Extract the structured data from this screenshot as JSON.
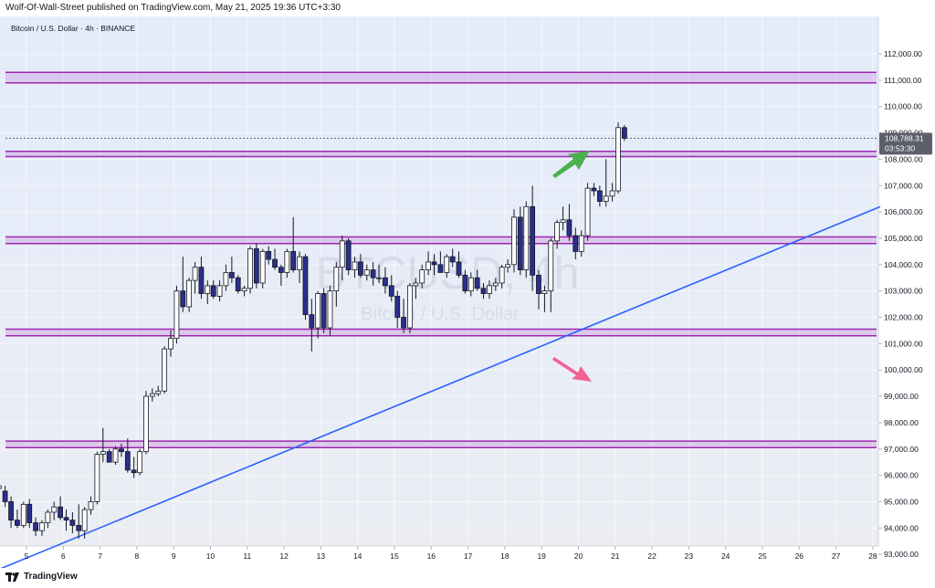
{
  "header": {
    "author": "Wolf-Of-Wall-Street",
    "published_text": " published on TradingView.com, ",
    "date_text": "May 21, 2025 19:36 UTC+3:30"
  },
  "symbol_label": "Bitcoin / U.S. Dollar · 4h · BINANCE",
  "watermark": {
    "ticker": "BTCUSD, 4h",
    "name": "Bitcoin / U.S. Dollar"
  },
  "price_tag": {
    "price": "108,788.31",
    "countdown": "03:53:30"
  },
  "footer": {
    "brand": "TradingView"
  },
  "colors": {
    "bull_body": "#ffffff",
    "bear_body": "#2a2e8c",
    "candle_outline": "#131722",
    "zone": "#9c27b0",
    "trendline": "#2962ff",
    "up_arrow": "#4caf50",
    "down_arrow": "#f06292",
    "price_tag_bg": "#5d606b"
  },
  "chart_data": {
    "type": "candlestick",
    "ylim": [
      92500,
      112500
    ],
    "x_date_range": [
      "May 4",
      "May 28"
    ],
    "yticks": [
      "93,000.00",
      "94,000.00",
      "95,000.00",
      "96,000.00",
      "97,000.00",
      "98,000.00",
      "99,000.00",
      "100,000.00",
      "101,000.00",
      "102,000.00",
      "103,000.00",
      "104,000.00",
      "105,000.00",
      "106,000.00",
      "107,000.00",
      "108,000.00",
      "109,000.00",
      "110,000.00",
      "111,000.00",
      "112,000.00"
    ],
    "xticks": [
      {
        "label": "5",
        "day": 5
      },
      {
        "label": "6",
        "day": 6
      },
      {
        "label": "7",
        "day": 7
      },
      {
        "label": "8",
        "day": 8
      },
      {
        "label": "9",
        "day": 9
      },
      {
        "label": "10",
        "day": 10
      },
      {
        "label": "11",
        "day": 11
      },
      {
        "label": "12",
        "day": 12
      },
      {
        "label": "13",
        "day": 13
      },
      {
        "label": "14",
        "day": 14
      },
      {
        "label": "15",
        "day": 15
      },
      {
        "label": "16",
        "day": 16
      },
      {
        "label": "17",
        "day": 17
      },
      {
        "label": "18",
        "day": 18
      },
      {
        "label": "19",
        "day": 19
      },
      {
        "label": "20",
        "day": 20
      },
      {
        "label": "21",
        "day": 21
      },
      {
        "label": "22",
        "day": 22
      },
      {
        "label": "23",
        "day": 23
      },
      {
        "label": "24",
        "day": 24
      },
      {
        "label": "25",
        "day": 25
      },
      {
        "label": "26",
        "day": 26
      },
      {
        "label": "27",
        "day": 27
      },
      {
        "label": "28",
        "day": 28
      }
    ],
    "zones": [
      {
        "top": 111300,
        "bottom": 110900
      },
      {
        "top": 108300,
        "bottom": 108100
      },
      {
        "top": 105050,
        "bottom": 104800
      },
      {
        "top": 101550,
        "bottom": 101300
      },
      {
        "top": 97300,
        "bottom": 97050
      }
    ],
    "trendline": {
      "start": {
        "day": 4.2,
        "price": 92400
      },
      "end": {
        "day": 28.2,
        "price": 106200
      }
    },
    "candles": [
      {
        "day": 4.25,
        "o": 95500,
        "h": 95700,
        "l": 95300,
        "c": 95600
      },
      {
        "day": 4.42,
        "o": 95400,
        "h": 95600,
        "l": 94800,
        "c": 95000
      },
      {
        "day": 4.58,
        "o": 95000,
        "h": 95200,
        "l": 94000,
        "c": 94300
      },
      {
        "day": 4.75,
        "o": 94300,
        "h": 94700,
        "l": 94000,
        "c": 94100
      },
      {
        "day": 4.92,
        "o": 94100,
        "h": 95000,
        "l": 94000,
        "c": 94900
      },
      {
        "day": 5.08,
        "o": 94900,
        "h": 95100,
        "l": 94000,
        "c": 94200
      },
      {
        "day": 5.25,
        "o": 94200,
        "h": 94400,
        "l": 93700,
        "c": 93900
      },
      {
        "day": 5.42,
        "o": 93900,
        "h": 94300,
        "l": 93700,
        "c": 94200
      },
      {
        "day": 5.58,
        "o": 94200,
        "h": 94700,
        "l": 94000,
        "c": 94600
      },
      {
        "day": 5.75,
        "o": 94600,
        "h": 95000,
        "l": 94300,
        "c": 94800
      },
      {
        "day": 5.92,
        "o": 94800,
        "h": 95200,
        "l": 94300,
        "c": 94400
      },
      {
        "day": 6.08,
        "o": 94400,
        "h": 94700,
        "l": 93900,
        "c": 94300
      },
      {
        "day": 6.25,
        "o": 94300,
        "h": 94600,
        "l": 93800,
        "c": 94100
      },
      {
        "day": 6.42,
        "o": 94100,
        "h": 94900,
        "l": 93600,
        "c": 93900
      },
      {
        "day": 6.58,
        "o": 93900,
        "h": 94800,
        "l": 93600,
        "c": 94700
      },
      {
        "day": 6.75,
        "o": 94700,
        "h": 95200,
        "l": 94500,
        "c": 95000
      },
      {
        "day": 6.92,
        "o": 95000,
        "h": 96900,
        "l": 94900,
        "c": 96800
      },
      {
        "day": 7.08,
        "o": 96800,
        "h": 97800,
        "l": 96500,
        "c": 96900
      },
      {
        "day": 7.25,
        "o": 96900,
        "h": 97000,
        "l": 96500,
        "c": 96500
      },
      {
        "day": 7.42,
        "o": 96500,
        "h": 97100,
        "l": 96400,
        "c": 97000
      },
      {
        "day": 7.58,
        "o": 97000,
        "h": 97200,
        "l": 96700,
        "c": 96900
      },
      {
        "day": 7.75,
        "o": 96900,
        "h": 97400,
        "l": 96100,
        "c": 96200
      },
      {
        "day": 7.92,
        "o": 96200,
        "h": 96700,
        "l": 95900,
        "c": 96100
      },
      {
        "day": 8.08,
        "o": 96100,
        "h": 97000,
        "l": 96000,
        "c": 96900
      },
      {
        "day": 8.25,
        "o": 96900,
        "h": 99200,
        "l": 96800,
        "c": 99000
      },
      {
        "day": 8.42,
        "o": 99000,
        "h": 99300,
        "l": 98800,
        "c": 99100
      },
      {
        "day": 8.58,
        "o": 99100,
        "h": 99400,
        "l": 99000,
        "c": 99200
      },
      {
        "day": 8.75,
        "o": 99200,
        "h": 100900,
        "l": 99100,
        "c": 100800
      },
      {
        "day": 8.92,
        "o": 100800,
        "h": 101500,
        "l": 100500,
        "c": 101200
      },
      {
        "day": 9.08,
        "o": 101200,
        "h": 103200,
        "l": 101000,
        "c": 103000
      },
      {
        "day": 9.25,
        "o": 103000,
        "h": 104300,
        "l": 102200,
        "c": 102400
      },
      {
        "day": 9.42,
        "o": 102400,
        "h": 103500,
        "l": 102200,
        "c": 103400
      },
      {
        "day": 9.58,
        "o": 103400,
        "h": 104100,
        "l": 102900,
        "c": 103900
      },
      {
        "day": 9.75,
        "o": 103900,
        "h": 104300,
        "l": 102700,
        "c": 102900
      },
      {
        "day": 9.92,
        "o": 102900,
        "h": 103400,
        "l": 102500,
        "c": 103200
      },
      {
        "day": 10.08,
        "o": 103200,
        "h": 103400,
        "l": 102700,
        "c": 102800
      },
      {
        "day": 10.25,
        "o": 102800,
        "h": 103400,
        "l": 102600,
        "c": 103200
      },
      {
        "day": 10.42,
        "o": 103200,
        "h": 104000,
        "l": 103000,
        "c": 103700
      },
      {
        "day": 10.58,
        "o": 103700,
        "h": 104300,
        "l": 103300,
        "c": 103500
      },
      {
        "day": 10.75,
        "o": 103500,
        "h": 103600,
        "l": 102900,
        "c": 103000
      },
      {
        "day": 10.92,
        "o": 103000,
        "h": 103200,
        "l": 102800,
        "c": 103100
      },
      {
        "day": 11.08,
        "o": 103100,
        "h": 104700,
        "l": 102900,
        "c": 104600
      },
      {
        "day": 11.25,
        "o": 104600,
        "h": 104800,
        "l": 103100,
        "c": 103300
      },
      {
        "day": 11.42,
        "o": 103300,
        "h": 104600,
        "l": 103100,
        "c": 104500
      },
      {
        "day": 11.58,
        "o": 104500,
        "h": 104700,
        "l": 104000,
        "c": 104200
      },
      {
        "day": 11.75,
        "o": 104200,
        "h": 104600,
        "l": 103800,
        "c": 103900
      },
      {
        "day": 11.92,
        "o": 103900,
        "h": 104000,
        "l": 103200,
        "c": 103700
      },
      {
        "day": 12.08,
        "o": 103700,
        "h": 104600,
        "l": 103500,
        "c": 104500
      },
      {
        "day": 12.25,
        "o": 104500,
        "h": 105800,
        "l": 103700,
        "c": 103800
      },
      {
        "day": 12.42,
        "o": 103800,
        "h": 104500,
        "l": 103300,
        "c": 104300
      },
      {
        "day": 12.58,
        "o": 104300,
        "h": 104400,
        "l": 101900,
        "c": 102100
      },
      {
        "day": 12.75,
        "o": 102100,
        "h": 102700,
        "l": 100700,
        "c": 101600
      },
      {
        "day": 12.92,
        "o": 101600,
        "h": 103000,
        "l": 101200,
        "c": 102900
      },
      {
        "day": 13.08,
        "o": 102900,
        "h": 103100,
        "l": 101400,
        "c": 101600
      },
      {
        "day": 13.25,
        "o": 101600,
        "h": 103200,
        "l": 101300,
        "c": 103000
      },
      {
        "day": 13.42,
        "o": 103000,
        "h": 104100,
        "l": 102400,
        "c": 103900
      },
      {
        "day": 13.58,
        "o": 103900,
        "h": 105100,
        "l": 103400,
        "c": 104900
      },
      {
        "day": 13.75,
        "o": 104900,
        "h": 105000,
        "l": 103600,
        "c": 103800
      },
      {
        "day": 13.92,
        "o": 103800,
        "h": 104300,
        "l": 103500,
        "c": 104100
      },
      {
        "day": 14.08,
        "o": 104100,
        "h": 104400,
        "l": 103500,
        "c": 103600
      },
      {
        "day": 14.25,
        "o": 103600,
        "h": 104000,
        "l": 103400,
        "c": 103800
      },
      {
        "day": 14.42,
        "o": 103800,
        "h": 104100,
        "l": 103200,
        "c": 103500
      },
      {
        "day": 14.58,
        "o": 103500,
        "h": 104000,
        "l": 103300,
        "c": 103500
      },
      {
        "day": 14.75,
        "o": 103500,
        "h": 103900,
        "l": 102900,
        "c": 103200
      },
      {
        "day": 14.92,
        "o": 103200,
        "h": 103600,
        "l": 102600,
        "c": 102800
      },
      {
        "day": 15.08,
        "o": 102800,
        "h": 103000,
        "l": 101600,
        "c": 102000
      },
      {
        "day": 15.25,
        "o": 102000,
        "h": 102700,
        "l": 101400,
        "c": 101600
      },
      {
        "day": 15.42,
        "o": 101600,
        "h": 103300,
        "l": 101400,
        "c": 103200
      },
      {
        "day": 15.58,
        "o": 103200,
        "h": 103500,
        "l": 102700,
        "c": 103300
      },
      {
        "day": 15.75,
        "o": 103300,
        "h": 104000,
        "l": 103100,
        "c": 103800
      },
      {
        "day": 15.92,
        "o": 103800,
        "h": 104500,
        "l": 103600,
        "c": 104100
      },
      {
        "day": 16.08,
        "o": 104100,
        "h": 104400,
        "l": 103600,
        "c": 104000
      },
      {
        "day": 16.25,
        "o": 104000,
        "h": 104500,
        "l": 103700,
        "c": 103700
      },
      {
        "day": 16.42,
        "o": 103700,
        "h": 104400,
        "l": 103500,
        "c": 104300
      },
      {
        "day": 16.58,
        "o": 104300,
        "h": 104600,
        "l": 103900,
        "c": 104100
      },
      {
        "day": 16.75,
        "o": 104100,
        "h": 104500,
        "l": 103500,
        "c": 103600
      },
      {
        "day": 16.92,
        "o": 103600,
        "h": 103800,
        "l": 102900,
        "c": 103000
      },
      {
        "day": 17.08,
        "o": 103000,
        "h": 103700,
        "l": 102800,
        "c": 103500
      },
      {
        "day": 17.25,
        "o": 103500,
        "h": 103800,
        "l": 103000,
        "c": 103100
      },
      {
        "day": 17.42,
        "o": 103100,
        "h": 103300,
        "l": 102700,
        "c": 102900
      },
      {
        "day": 17.58,
        "o": 102900,
        "h": 103400,
        "l": 102700,
        "c": 103200
      },
      {
        "day": 17.75,
        "o": 103200,
        "h": 103500,
        "l": 103000,
        "c": 103300
      },
      {
        "day": 17.92,
        "o": 103300,
        "h": 104000,
        "l": 103100,
        "c": 103900
      },
      {
        "day": 18.08,
        "o": 103900,
        "h": 104200,
        "l": 103700,
        "c": 104000
      },
      {
        "day": 18.25,
        "o": 104000,
        "h": 106100,
        "l": 103700,
        "c": 105800
      },
      {
        "day": 18.42,
        "o": 105800,
        "h": 106200,
        "l": 103600,
        "c": 103800
      },
      {
        "day": 18.58,
        "o": 103800,
        "h": 106400,
        "l": 103500,
        "c": 106200
      },
      {
        "day": 18.75,
        "o": 106200,
        "h": 107000,
        "l": 103000,
        "c": 103600
      },
      {
        "day": 18.92,
        "o": 103600,
        "h": 103800,
        "l": 102300,
        "c": 102900
      },
      {
        "day": 19.08,
        "o": 102900,
        "h": 103200,
        "l": 102200,
        "c": 103000
      },
      {
        "day": 19.25,
        "o": 103000,
        "h": 105000,
        "l": 102200,
        "c": 104900
      },
      {
        "day": 19.42,
        "o": 104900,
        "h": 105700,
        "l": 104600,
        "c": 105600
      },
      {
        "day": 19.58,
        "o": 105600,
        "h": 106200,
        "l": 105300,
        "c": 105700
      },
      {
        "day": 19.75,
        "o": 105700,
        "h": 106300,
        "l": 104900,
        "c": 105100
      },
      {
        "day": 19.92,
        "o": 105100,
        "h": 105400,
        "l": 104200,
        "c": 104500
      },
      {
        "day": 20.08,
        "o": 104500,
        "h": 105300,
        "l": 104300,
        "c": 105100
      },
      {
        "day": 20.25,
        "o": 105100,
        "h": 107100,
        "l": 104900,
        "c": 106900
      },
      {
        "day": 20.42,
        "o": 106900,
        "h": 107100,
        "l": 106600,
        "c": 106800
      },
      {
        "day": 20.58,
        "o": 106800,
        "h": 107000,
        "l": 106200,
        "c": 106400
      },
      {
        "day": 20.75,
        "o": 106400,
        "h": 108000,
        "l": 106200,
        "c": 106600
      },
      {
        "day": 20.92,
        "o": 106600,
        "h": 107100,
        "l": 106400,
        "c": 106800
      },
      {
        "day": 21.08,
        "o": 106800,
        "h": 109400,
        "l": 106700,
        "c": 109200
      },
      {
        "day": 21.25,
        "o": 109200,
        "h": 109300,
        "l": 108700,
        "c": 108800
      }
    ]
  }
}
